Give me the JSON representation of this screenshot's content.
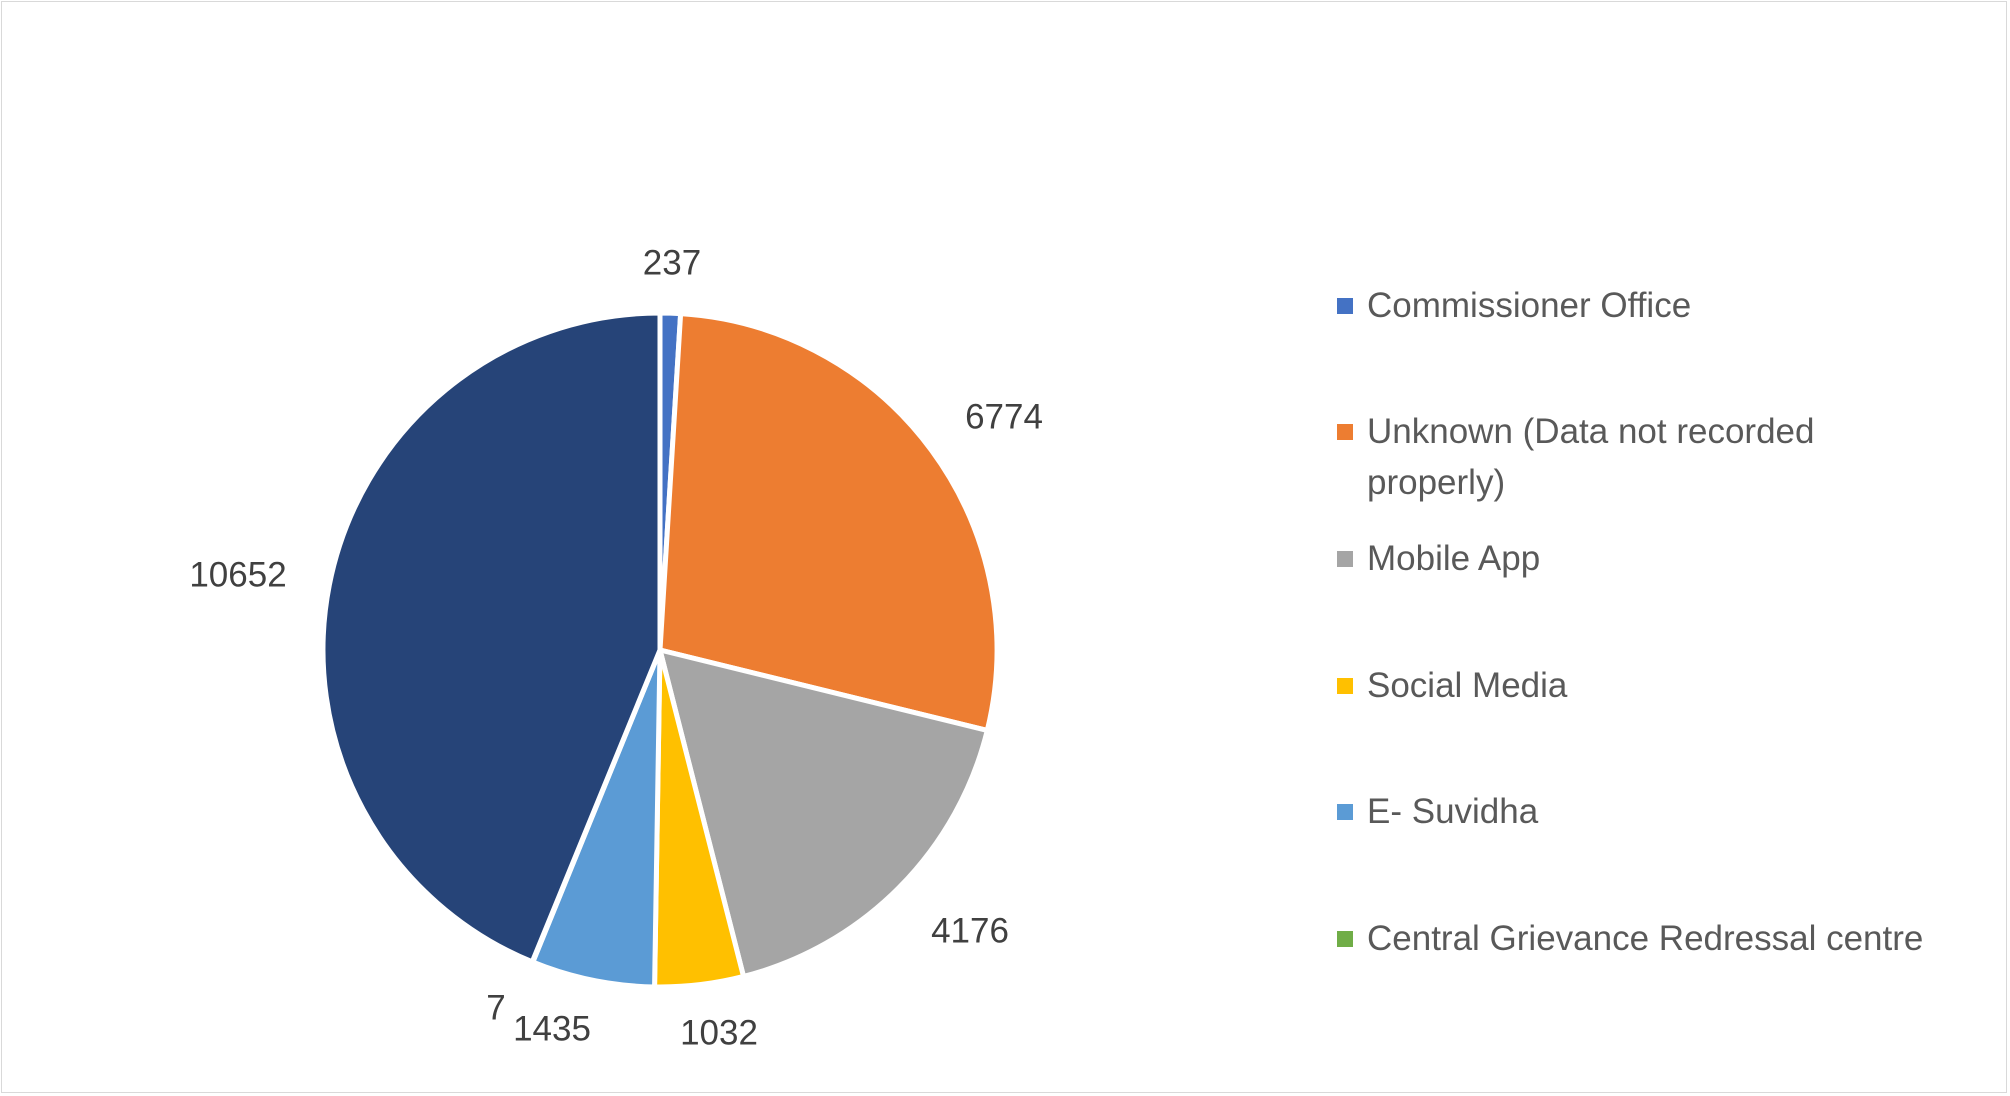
{
  "chart_data": {
    "type": "pie",
    "title": "",
    "categories": [
      "Commissioner Office",
      "Unknown (Data not recorded properly)",
      "Mobile App",
      "Social Media",
      "E- Suvidha",
      "Central Grievance Redressal centre",
      ""
    ],
    "values": [
      237,
      6774,
      4176,
      1032,
      1435,
      7,
      10652
    ],
    "data_labels": [
      "237",
      "6774",
      "4176",
      "1032",
      "1435",
      "7",
      "10652"
    ],
    "colors": [
      "#4472C4",
      "#ED7D31",
      "#A5A5A5",
      "#FFC000",
      "#5B9BD5",
      "#70AD47",
      "#264478"
    ],
    "legend_position": "right",
    "start_angle_deg": 0,
    "direction": "clockwise"
  },
  "legend": {
    "items": [
      {
        "label": "Commissioner Office",
        "color": "#4472C4"
      },
      {
        "label": "Unknown (Data not recorded properly)",
        "color": "#ED7D31"
      },
      {
        "label": "Mobile App",
        "color": "#A5A5A5"
      },
      {
        "label": "Social Media",
        "color": "#FFC000"
      },
      {
        "label": "E- Suvidha",
        "color": "#5B9BD5"
      },
      {
        "label": "Central Grievance Redressal centre",
        "color": "#70AD47"
      }
    ]
  }
}
